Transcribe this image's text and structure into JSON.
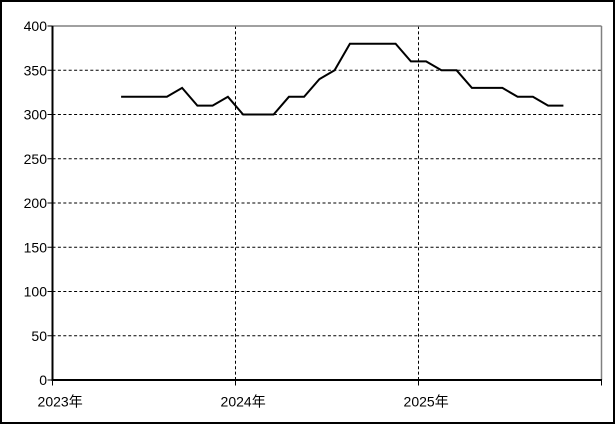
{
  "chart_data": {
    "type": "line",
    "title": "",
    "xlabel": "",
    "ylabel": "",
    "x": [
      "2023-05",
      "2023-06",
      "2023-07",
      "2023-08",
      "2023-09",
      "2023-10",
      "2023-11",
      "2023-12",
      "2024-01",
      "2024-02",
      "2024-03",
      "2024-04",
      "2024-05",
      "2024-06",
      "2024-07",
      "2024-08",
      "2024-09",
      "2024-10",
      "2024-11",
      "2024-12",
      "2025-01",
      "2025-02",
      "2025-03",
      "2025-04",
      "2025-05",
      "2025-06",
      "2025-07",
      "2025-08",
      "2025-09",
      "2025-10"
    ],
    "values": [
      320,
      320,
      320,
      320,
      330,
      310,
      310,
      320,
      300,
      300,
      300,
      320,
      320,
      340,
      350,
      380,
      380,
      380,
      380,
      360,
      360,
      350,
      350,
      330,
      330,
      330,
      320,
      320,
      310,
      310
    ],
    "x_axis": {
      "start_month": "2023-01",
      "months_shown": 36,
      "tick_labels": [
        "2023年",
        "2024年",
        "2025年"
      ],
      "tick_month_offsets": [
        0,
        12,
        24
      ]
    },
    "y_axis": {
      "min": 0,
      "max": 400,
      "tick_step": 50,
      "tick_labels": [
        "0",
        "50",
        "100",
        "150",
        "200",
        "250",
        "300",
        "350",
        "400"
      ]
    },
    "grid": {
      "horizontal": "dashed",
      "vertical": "dashed-at-year-boundaries"
    },
    "legend": "none",
    "colors": {
      "series": "#000000",
      "plot_frame": "#808080",
      "gridlines": "#000000",
      "axes": "#000000",
      "background": "#ffffff",
      "text": "#000000",
      "outer_border": "#000000"
    }
  }
}
